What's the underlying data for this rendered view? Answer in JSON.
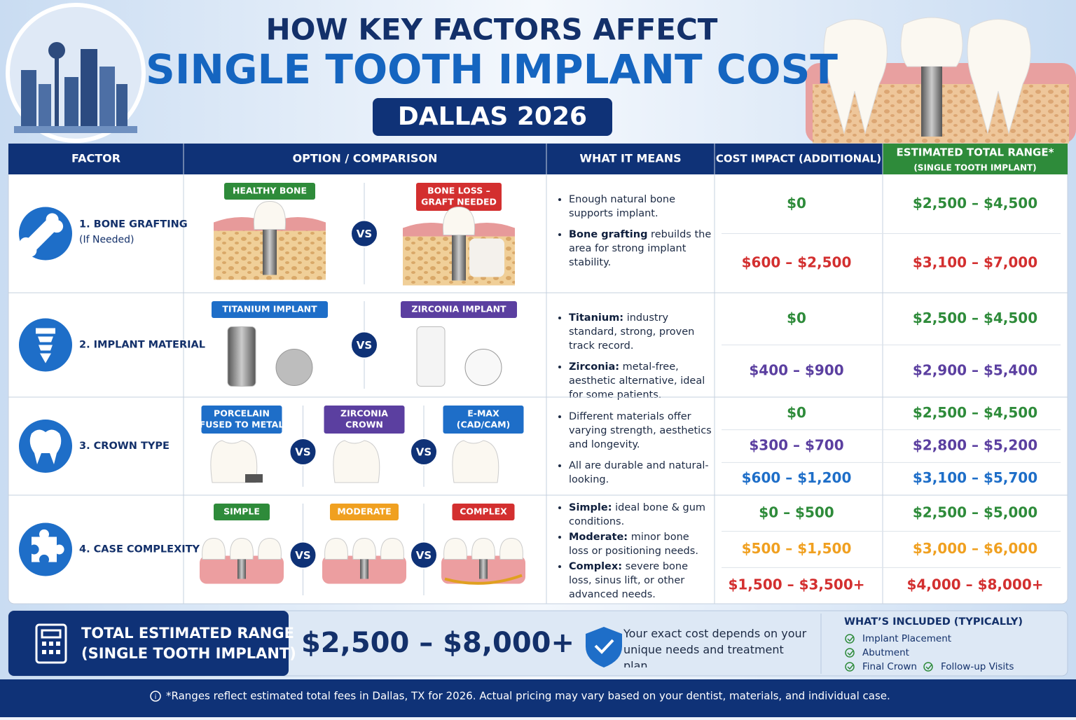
{
  "header": {
    "title_line1": "HOW KEY FACTORS AFFECT",
    "title_line2": "SINGLE TOOTH IMPLANT COST",
    "badge": "DALLAS 2026"
  },
  "table": {
    "columns": [
      "FACTOR",
      "OPTION / COMPARISON",
      "WHAT IT MEANS",
      "COST IMPACT (ADDITIONAL)"
    ],
    "total_column": {
      "title": "ESTIMATED TOTAL RANGE*",
      "subtitle": "(SINGLE TOOTH IMPLANT)"
    },
    "vs_label": "VS",
    "rows": [
      {
        "factor": "1. BONE GRAFTING",
        "factor_note": "(If Needed)",
        "options": [
          {
            "label_lines": [
              "HEALTHY BONE"
            ],
            "color": "#2e8b3a"
          },
          {
            "label_lines": [
              "BONE LOSS –",
              "GRAFT NEEDED"
            ],
            "color": "#d32f2f"
          }
        ],
        "meaning": [
          {
            "text": "Enough natural bone supports implant."
          },
          {
            "bold": "Bone grafting",
            "text": " rebuilds the area for strong implant stability."
          }
        ],
        "costs": [
          {
            "impact": "$0",
            "total": "$2,500 – $4,500",
            "color": "#2e8b3a"
          },
          {
            "impact": "$600 – $2,500",
            "total": "$3,100 – $7,000",
            "color": "#d32f2f"
          }
        ]
      },
      {
        "factor": "2. IMPLANT MATERIAL",
        "options": [
          {
            "label_lines": [
              "TITANIUM IMPLANT"
            ],
            "color": "#1e6ec8"
          },
          {
            "label_lines": [
              "ZIRCONIA IMPLANT"
            ],
            "color": "#5b3fa0"
          }
        ],
        "meaning": [
          {
            "bold": "Titanium:",
            "text": " industry standard, strong, proven track record."
          },
          {
            "bold": "Zirconia:",
            "text": " metal-free, aesthetic alternative, ideal for some patients."
          }
        ],
        "costs": [
          {
            "impact": "$0",
            "total": "$2,500 – $4,500",
            "color": "#2e8b3a"
          },
          {
            "impact": "$400 – $900",
            "total": "$2,900 – $5,400",
            "color": "#5b3fa0"
          }
        ]
      },
      {
        "factor": "3. CROWN TYPE",
        "options": [
          {
            "label_lines": [
              "PORCELAIN",
              "FUSED TO METAL"
            ],
            "color": "#1e6ec8"
          },
          {
            "label_lines": [
              "ZIRCONIA",
              "CROWN"
            ],
            "color": "#5b3fa0"
          },
          {
            "label_lines": [
              "E-MAX",
              "(CAD/CAM)"
            ],
            "color": "#1e6ec8"
          }
        ],
        "meaning": [
          {
            "text": "Different materials offer varying strength, aesthetics and longevity."
          },
          {
            "text": "All are durable and natural-looking."
          }
        ],
        "costs": [
          {
            "impact": "$0",
            "total": "$2,500 – $4,500",
            "color": "#2e8b3a"
          },
          {
            "impact": "$300 – $700",
            "total": "$2,800 – $5,200",
            "color": "#5b3fa0"
          },
          {
            "impact": "$600 – $1,200",
            "total": "$3,100 – $5,700",
            "color": "#1e6ec8"
          }
        ]
      },
      {
        "factor": "4. CASE COMPLEXITY",
        "options": [
          {
            "label_lines": [
              "SIMPLE"
            ],
            "color": "#2e8b3a"
          },
          {
            "label_lines": [
              "MODERATE"
            ],
            "color": "#f0a020"
          },
          {
            "label_lines": [
              "COMPLEX"
            ],
            "color": "#d32f2f"
          }
        ],
        "meaning": [
          {
            "bold": "Simple:",
            "text": " ideal bone & gum conditions."
          },
          {
            "bold": "Moderate:",
            "text": " minor bone loss or positioning needs."
          },
          {
            "bold": "Complex:",
            "text": " severe bone loss, sinus lift, or other advanced needs."
          }
        ],
        "costs": [
          {
            "impact": "$0 – $500",
            "total": "$2,500 – $5,000",
            "color": "#2e8b3a"
          },
          {
            "impact": "$500 – $1,500",
            "total": "$3,000 – $6,000",
            "color": "#f0a020"
          },
          {
            "impact": "$1,500 – $3,500+",
            "total": "$4,000 – $8,000+",
            "color": "#d32f2f"
          }
        ]
      }
    ]
  },
  "summary": {
    "label_line1": "TOTAL ESTIMATED RANGE",
    "label_line2": "(SINGLE TOOTH IMPLANT)",
    "range": "$2,500 – $8,000+",
    "note": "Your exact cost depends on your unique needs and treatment plan.",
    "included_title": "WHAT’S INCLUDED (TYPICALLY)",
    "included": [
      "Implant Placement",
      "Abutment",
      "Final Crown",
      "Follow-up Visits"
    ]
  },
  "footer": "*Ranges reflect estimated total fees in Dallas, TX for 2026. Actual pricing may vary based on your dentist, materials, and individual case."
}
